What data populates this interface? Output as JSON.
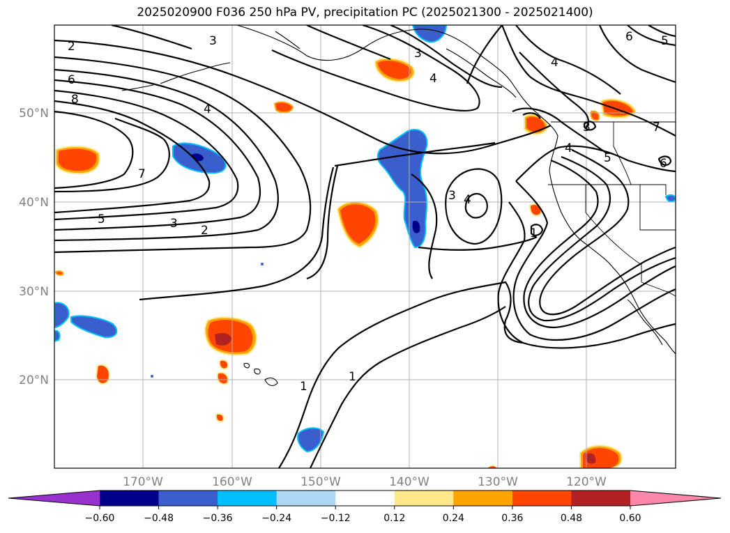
{
  "title": "2025020900 F036 250 hPa PV, precipitation PC (2025021300 - 2025021400)",
  "map": {
    "lat_labels": [
      "50°N",
      "40°N",
      "30°N",
      "20°N"
    ],
    "lon_labels": [
      "170°W",
      "160°W",
      "150°W",
      "140°W",
      "130°W",
      "120°W"
    ]
  },
  "contour_labels": [
    "2",
    "3",
    "6",
    "8",
    "4",
    "7",
    "5",
    "3",
    "2",
    "3",
    "4",
    "4",
    "3",
    "4",
    "1",
    "1",
    "1",
    "6",
    "5",
    "7",
    "5",
    "4",
    "3",
    "6"
  ],
  "colorbar": {
    "ticks": [
      "−0.60",
      "−0.48",
      "−0.36",
      "−0.24",
      "−0.12",
      "0.12",
      "0.24",
      "0.36",
      "0.48",
      "0.60"
    ],
    "colors": [
      "#9932cc",
      "#00008b",
      "#3a5fcd",
      "#00bfff",
      "#add8f5",
      "#ffffff",
      "#ffe88a",
      "#ffa500",
      "#ff4500",
      "#b22222",
      "#ff88aa"
    ]
  }
}
